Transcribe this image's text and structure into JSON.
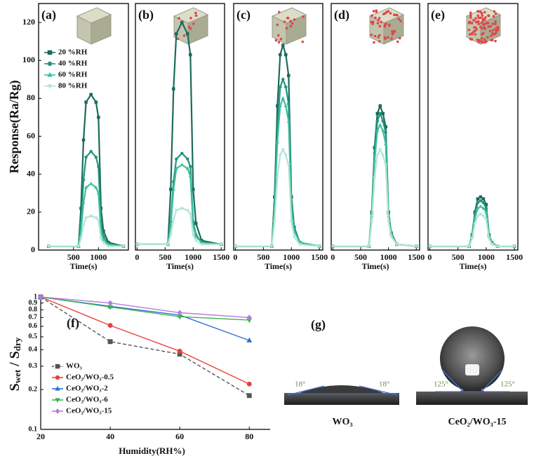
{
  "chart_data": [
    {
      "type": "line",
      "label": "(a)",
      "ylabel": "Response(Ra/Rg)",
      "xlabel": "Time(s)",
      "xlim": [
        -200,
        1600
      ],
      "xticks": [
        500,
        1000
      ],
      "ylim": [
        0,
        130
      ],
      "yticks": [
        0,
        20,
        40,
        60,
        80,
        100,
        120
      ],
      "x": [
        0,
        600,
        650,
        700,
        750,
        850,
        950,
        1000,
        1050,
        1100,
        1200,
        1500
      ],
      "series": [
        {
          "name": "20 %RH",
          "color": "#1b6b5c",
          "marker": "square",
          "values": [
            2,
            2,
            22,
            58,
            78,
            82,
            78,
            70,
            22,
            10,
            4,
            2
          ]
        },
        {
          "name": "40 %RH",
          "color": "#23937a",
          "marker": "circle",
          "values": [
            2,
            2,
            14,
            37,
            49,
            52,
            49,
            44,
            14,
            7,
            3,
            2
          ]
        },
        {
          "name": "60 %RH",
          "color": "#3cbfa0",
          "marker": "triangle",
          "values": [
            2,
            2,
            10,
            25,
            33,
            35,
            33,
            30,
            10,
            5,
            3,
            2
          ]
        },
        {
          "name": "80 %RH",
          "color": "#b4e6d6",
          "marker": "down",
          "values": [
            2,
            2,
            6,
            13,
            17,
            18,
            17,
            16,
            6,
            4,
            2,
            2
          ]
        }
      ]
    },
    {
      "type": "line",
      "label": "(b)",
      "xlabel": "Time(s)",
      "xlim": [
        -30,
        1560
      ],
      "xticks": [
        0,
        500,
        1000,
        1500
      ],
      "ylim": [
        0,
        130
      ],
      "x": [
        0,
        550,
        600,
        650,
        700,
        800,
        900,
        950,
        1000,
        1050,
        1150,
        1500
      ],
      "series": [
        {
          "color": "#1b6b5c",
          "marker": "square",
          "values": [
            3,
            3,
            32,
            85,
            114,
            120,
            114,
            103,
            32,
            14,
            5,
            3
          ]
        },
        {
          "color": "#23937a",
          "marker": "circle",
          "values": [
            3,
            3,
            15,
            36,
            48,
            51,
            48,
            44,
            15,
            8,
            4,
            3
          ]
        },
        {
          "color": "#3cbfa0",
          "marker": "triangle",
          "values": [
            3,
            3,
            13,
            32,
            43,
            45,
            43,
            39,
            13,
            7,
            4,
            3
          ]
        },
        {
          "color": "#b4e6d6",
          "marker": "down",
          "values": [
            3,
            3,
            8,
            16,
            21,
            22,
            21,
            19,
            8,
            5,
            3,
            3
          ]
        }
      ]
    },
    {
      "type": "line",
      "label": "(c)",
      "xlabel": "Time(s)",
      "xlim": [
        -30,
        1560
      ],
      "xticks": [
        0,
        500,
        1000,
        1500
      ],
      "ylim": [
        0,
        130
      ],
      "x": [
        0,
        650,
        700,
        750,
        800,
        850,
        900,
        950,
        1000,
        1050,
        1150,
        1500
      ],
      "series": [
        {
          "color": "#1b6b5c",
          "marker": "square",
          "values": [
            2,
            2,
            28,
            76,
            103,
            108,
            103,
            92,
            28,
            12,
            4,
            2
          ]
        },
        {
          "color": "#23937a",
          "marker": "circle",
          "values": [
            2,
            2,
            24,
            64,
            86,
            90,
            86,
            77,
            24,
            11,
            4,
            2
          ]
        },
        {
          "color": "#3cbfa0",
          "marker": "triangle",
          "values": [
            2,
            2,
            22,
            57,
            76,
            80,
            76,
            68,
            22,
            10,
            4,
            2
          ]
        },
        {
          "color": "#b4e6d6",
          "marker": "down",
          "values": [
            2,
            2,
            15,
            38,
            50,
            53,
            50,
            45,
            15,
            7,
            3,
            2
          ]
        }
      ]
    },
    {
      "type": "line",
      "label": "(d)",
      "xlabel": "Time(s)",
      "xlim": [
        -30,
        1560
      ],
      "xticks": [
        0,
        500,
        1000,
        1500
      ],
      "ylim": [
        0,
        130
      ],
      "x": [
        0,
        650,
        700,
        750,
        800,
        850,
        900,
        950,
        1000,
        1050,
        1150,
        1500
      ],
      "series": [
        {
          "color": "#1b6b5c",
          "marker": "square",
          "values": [
            2,
            2,
            20,
            54,
            72,
            76,
            72,
            65,
            20,
            9,
            3,
            2
          ]
        },
        {
          "color": "#23937a",
          "marker": "circle",
          "values": [
            2,
            2,
            19,
            51,
            68,
            72,
            68,
            62,
            19,
            9,
            3,
            2
          ]
        },
        {
          "color": "#3cbfa0",
          "marker": "triangle",
          "values": [
            2,
            2,
            18,
            47,
            63,
            66,
            63,
            56,
            18,
            8,
            3,
            2
          ]
        },
        {
          "color": "#b4e6d6",
          "marker": "down",
          "values": [
            2,
            2,
            15,
            38,
            50,
            53,
            50,
            45,
            15,
            7,
            3,
            2
          ]
        }
      ]
    },
    {
      "type": "line",
      "label": "(e)",
      "xlabel": "Time(s)",
      "xlim": [
        -30,
        1560
      ],
      "xticks": [
        0,
        500,
        1000,
        1500
      ],
      "ylim": [
        0,
        130
      ],
      "x": [
        0,
        700,
        750,
        800,
        850,
        900,
        950,
        1000,
        1050,
        1100,
        1200,
        1500
      ],
      "series": [
        {
          "color": "#1b6b5c",
          "marker": "square",
          "values": [
            2,
            2,
            8,
            20,
            27,
            28,
            27,
            24,
            8,
            4,
            2,
            2
          ]
        },
        {
          "color": "#23937a",
          "marker": "circle",
          "values": [
            2,
            2,
            8,
            19,
            25,
            26,
            25,
            22,
            8,
            4,
            2,
            2
          ]
        },
        {
          "color": "#3cbfa0",
          "marker": "triangle",
          "values": [
            2,
            2,
            7,
            17,
            22,
            23,
            22,
            20,
            7,
            4,
            2,
            2
          ]
        },
        {
          "color": "#b4e6d6",
          "marker": "down",
          "values": [
            2,
            2,
            6,
            14,
            18,
            19,
            18,
            16,
            6,
            3,
            2,
            2
          ]
        }
      ]
    },
    {
      "type": "line",
      "label": "(f)",
      "log": true,
      "ylabel": [
        "S",
        "wet",
        " / S",
        "dry"
      ],
      "xlabel": "Humidity(RH%)",
      "xlim": [
        20,
        86
      ],
      "xticks": [
        20,
        40,
        60,
        80
      ],
      "ylim": [
        0.1,
        1
      ],
      "yticks": [
        0.1,
        0.2,
        0.3,
        0.4,
        0.5,
        0.6,
        0.7,
        0.8,
        0.9,
        1
      ],
      "x": [
        20,
        40,
        60,
        80
      ],
      "series": [
        {
          "name": "WO₃",
          "color": "#555555",
          "marker": "square",
          "dash": true,
          "values": [
            1,
            0.46,
            0.37,
            0.18
          ]
        },
        {
          "name": "CeO₂/WO₃-0.5",
          "color": "#e8413c",
          "marker": "circle",
          "values": [
            1,
            0.61,
            0.39,
            0.22
          ]
        },
        {
          "name": "CeO₂/WO₃-2",
          "color": "#2f6fd6",
          "marker": "triangle",
          "values": [
            1,
            0.85,
            0.73,
            0.47
          ]
        },
        {
          "name": "CeO₂/WO₃-6",
          "color": "#3cb54a",
          "marker": "down",
          "values": [
            1,
            0.84,
            0.71,
            0.67
          ]
        },
        {
          "name": "CeO₂/WO₃-15",
          "color": "#b37be0",
          "marker": "diamond",
          "values": [
            1,
            0.9,
            0.76,
            0.7
          ]
        }
      ]
    }
  ],
  "photo": {
    "label": "(g)",
    "angles": [
      "18°",
      "18°",
      "125°",
      "125°"
    ],
    "captions": [
      "WO₃",
      "CeO₂/WO₃-15"
    ]
  }
}
